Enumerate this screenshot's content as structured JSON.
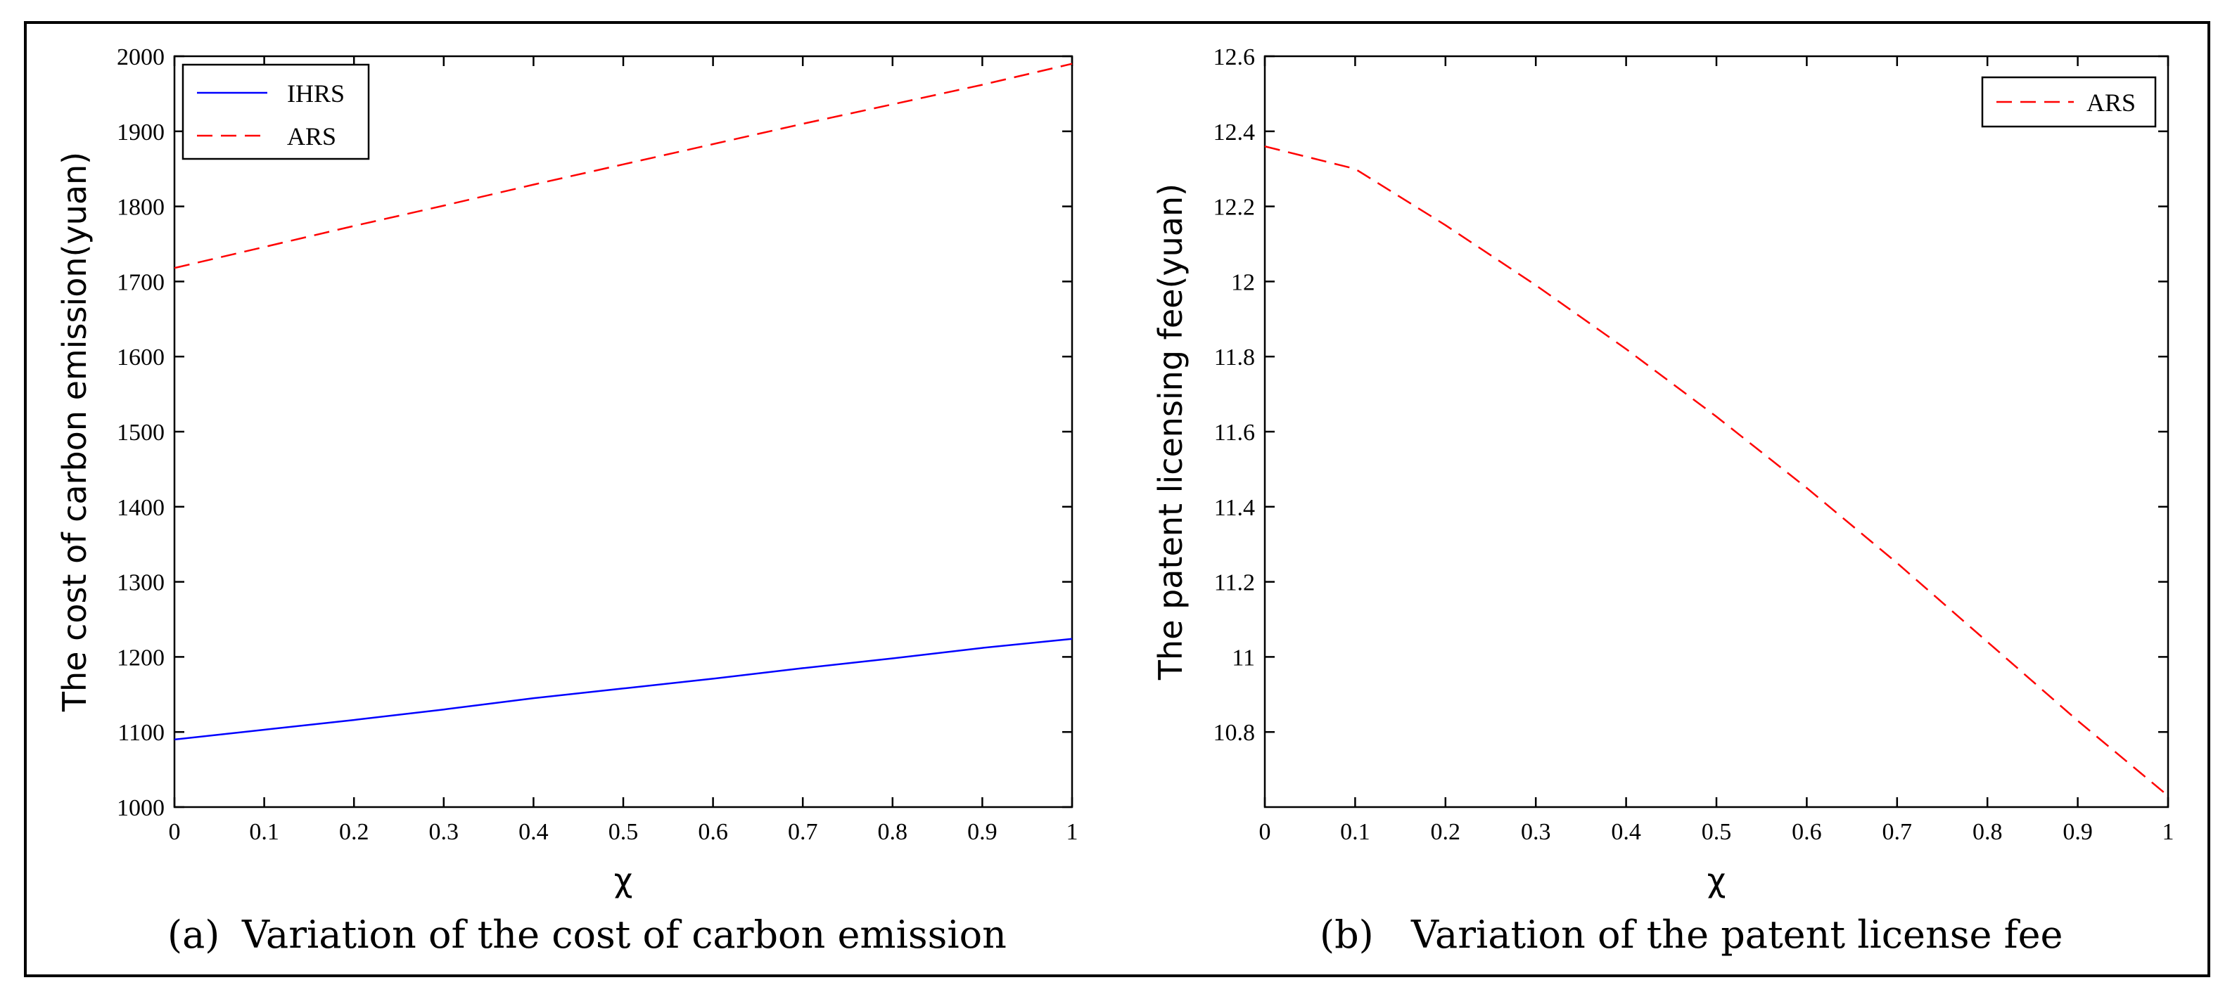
{
  "chart_data": [
    {
      "type": "line",
      "id": "a",
      "caption_label": "(a)",
      "caption_text": "Variation of the cost of carbon emission",
      "xlabel": "χ",
      "ylabel": "The cost of carbon emission(yuan)",
      "xlim": [
        0,
        1
      ],
      "ylim": [
        1000,
        2000
      ],
      "xticks": [
        "0",
        "0.1",
        "0.2",
        "0.3",
        "0.4",
        "0.5",
        "0.6",
        "0.7",
        "0.8",
        "0.9",
        "1"
      ],
      "yticks": [
        "1000",
        "1100",
        "1200",
        "1300",
        "1400",
        "1500",
        "1600",
        "1700",
        "1800",
        "1900",
        "2000"
      ],
      "legend_position": "top-left",
      "series": [
        {
          "name": "IHRS",
          "color": "#0000ff",
          "style": "solid",
          "x": [
            0,
            0.1,
            0.2,
            0.3,
            0.4,
            0.5,
            0.6,
            0.7,
            0.8,
            0.9,
            1
          ],
          "y": [
            1090,
            1103,
            1116,
            1130,
            1145,
            1158,
            1171,
            1185,
            1198,
            1212,
            1224
          ]
        },
        {
          "name": "ARS",
          "color": "#ff0000",
          "style": "dashed",
          "x": [
            0,
            0.1,
            0.2,
            0.3,
            0.4,
            0.5,
            0.6,
            0.7,
            0.8,
            0.9,
            1
          ],
          "y": [
            1718,
            1746,
            1774,
            1801,
            1829,
            1856,
            1883,
            1910,
            1936,
            1962,
            1990
          ]
        }
      ]
    },
    {
      "type": "line",
      "id": "b",
      "caption_label": "(b)",
      "caption_text": "Variation of the patent license fee",
      "xlabel": "χ",
      "ylabel": "The patent licensing fee(yuan)",
      "xlim": [
        0,
        1
      ],
      "ylim": [
        10.6,
        12.6
      ],
      "xticks": [
        "0",
        "0.1",
        "0.2",
        "0.3",
        "0.4",
        "0.5",
        "0.6",
        "0.7",
        "0.8",
        "0.9",
        "1"
      ],
      "yticks": [
        "10.8",
        "11",
        "11.2",
        "11.4",
        "11.6",
        "11.8",
        "12",
        "12.2",
        "12.4",
        "12.6"
      ],
      "legend_position": "top-right",
      "series": [
        {
          "name": "ARS",
          "color": "#ff0000",
          "style": "dashed",
          "x": [
            0,
            0.1,
            0.2,
            0.3,
            0.4,
            0.5,
            0.6,
            0.7,
            0.8,
            0.9,
            1
          ],
          "y": [
            12.36,
            12.3,
            12.15,
            11.99,
            11.82,
            11.64,
            11.45,
            11.25,
            11.04,
            10.83,
            10.63
          ]
        }
      ]
    }
  ]
}
